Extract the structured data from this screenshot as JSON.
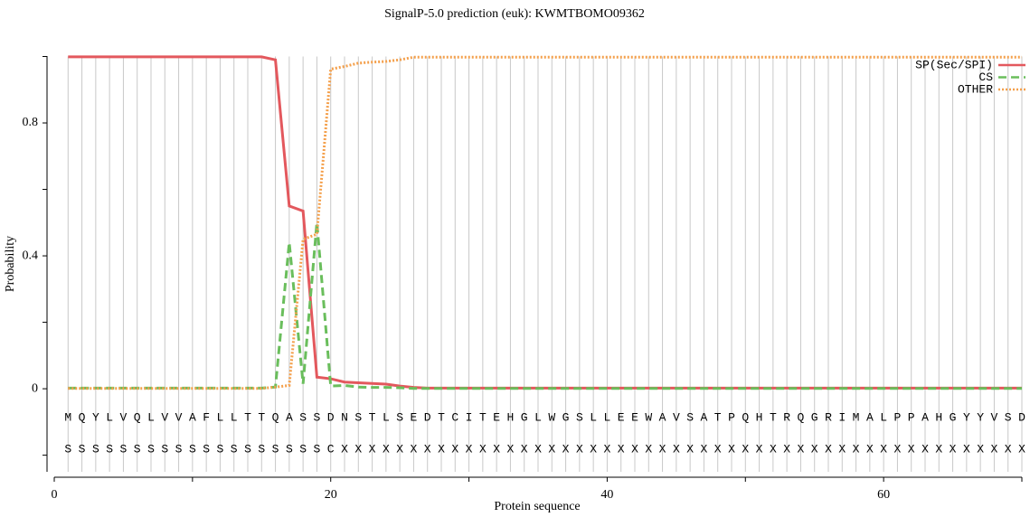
{
  "chart_data": {
    "type": "line",
    "title": "SignalP-5.0 prediction (euk):  KWMTBOMO09362",
    "x_label": "Protein sequence",
    "y_label": "Probability",
    "x": [
      1,
      2,
      3,
      4,
      5,
      6,
      7,
      8,
      9,
      10,
      11,
      12,
      13,
      14,
      15,
      16,
      17,
      18,
      19,
      20,
      21,
      22,
      23,
      24,
      25,
      26,
      27,
      28,
      29,
      30,
      31,
      32,
      33,
      34,
      35,
      36,
      37,
      38,
      39,
      40,
      41,
      42,
      43,
      44,
      45,
      46,
      47,
      48,
      49,
      50,
      51,
      52,
      53,
      54,
      55,
      56,
      57,
      58,
      59,
      60,
      61,
      62,
      63,
      64,
      65,
      66,
      67,
      68,
      69,
      70
    ],
    "sequence": [
      "M",
      "Q",
      "Y",
      "L",
      "V",
      "Q",
      "L",
      "V",
      "V",
      "A",
      "F",
      "L",
      "L",
      "T",
      "T",
      "Q",
      "A",
      "S",
      "S",
      "D",
      "N",
      "S",
      "T",
      "L",
      "S",
      "E",
      "D",
      "T",
      "C",
      "I",
      "T",
      "E",
      "H",
      "G",
      "L",
      "W",
      "G",
      "S",
      "L",
      "L",
      "E",
      "E",
      "W",
      "A",
      "V",
      "S",
      "A",
      "T",
      "P",
      "Q",
      "H",
      "T",
      "R",
      "Q",
      "G",
      "R",
      "I",
      "M",
      "A",
      "L",
      "P",
      "P",
      "A",
      "H",
      "G",
      "Y",
      "Y",
      "V",
      "S",
      "D"
    ],
    "labels": [
      "S",
      "S",
      "S",
      "S",
      "S",
      "S",
      "S",
      "S",
      "S",
      "S",
      "S",
      "S",
      "S",
      "S",
      "S",
      "S",
      "S",
      "S",
      "S",
      "C",
      "X",
      "X",
      "X",
      "X",
      "X",
      "X",
      "X",
      "X",
      "X",
      "X",
      "X",
      "X",
      "X",
      "X",
      "X",
      "X",
      "X",
      "X",
      "X",
      "X",
      "X",
      "X",
      "X",
      "X",
      "X",
      "X",
      "X",
      "X",
      "X",
      "X",
      "X",
      "X",
      "X",
      "X",
      "X",
      "X",
      "X",
      "X",
      "X",
      "X",
      "X",
      "X",
      "X",
      "X",
      "X",
      "X",
      "X",
      "X",
      "X",
      "X"
    ],
    "series": [
      {
        "name": "SP(Sec/SPI)",
        "color": "#e3585d",
        "style": "solid",
        "values": [
          0.999,
          0.999,
          0.999,
          0.999,
          0.999,
          0.999,
          0.999,
          0.999,
          0.999,
          0.999,
          0.999,
          0.999,
          0.999,
          0.999,
          0.999,
          0.99,
          0.55,
          0.535,
          0.035,
          0.03,
          0.02,
          0.018,
          0.016,
          0.014,
          0.008,
          0.004,
          0.002,
          0.002,
          0.002,
          0.002,
          0.002,
          0.002,
          0.002,
          0.002,
          0.002,
          0.002,
          0.002,
          0.002,
          0.002,
          0.002,
          0.002,
          0.002,
          0.002,
          0.002,
          0.002,
          0.002,
          0.002,
          0.002,
          0.002,
          0.002,
          0.002,
          0.002,
          0.002,
          0.002,
          0.002,
          0.002,
          0.002,
          0.002,
          0.002,
          0.002,
          0.002,
          0.002,
          0.002,
          0.002,
          0.002,
          0.002,
          0.002,
          0.002,
          0.002,
          0.002
        ]
      },
      {
        "name": "CS",
        "color": "#6abe5c",
        "style": "dashed",
        "values": [
          0.002,
          0.002,
          0.002,
          0.002,
          0.002,
          0.002,
          0.002,
          0.002,
          0.002,
          0.002,
          0.002,
          0.002,
          0.002,
          0.002,
          0.002,
          0.005,
          0.44,
          0.015,
          0.5,
          0.008,
          0.01,
          0.005,
          0.004,
          0.004,
          0.003,
          0.001,
          0.001,
          0.001,
          0.001,
          0.001,
          0.001,
          0.001,
          0.001,
          0.001,
          0.001,
          0.001,
          0.001,
          0.001,
          0.001,
          0.001,
          0.001,
          0.001,
          0.001,
          0.001,
          0.001,
          0.001,
          0.001,
          0.001,
          0.001,
          0.001,
          0.001,
          0.001,
          0.001,
          0.001,
          0.001,
          0.001,
          0.001,
          0.001,
          0.001,
          0.001,
          0.001,
          0.001,
          0.001,
          0.001,
          0.001,
          0.001,
          0.001,
          0.001,
          0.001,
          0.001
        ]
      },
      {
        "name": "OTHER",
        "color": "#f4a04c",
        "style": "dotted",
        "values": [
          0.001,
          0.001,
          0.001,
          0.001,
          0.001,
          0.001,
          0.001,
          0.001,
          0.001,
          0.001,
          0.001,
          0.001,
          0.001,
          0.001,
          0.001,
          0.005,
          0.01,
          0.45,
          0.465,
          0.962,
          0.97,
          0.98,
          0.983,
          0.985,
          0.99,
          0.998,
          0.998,
          0.998,
          0.998,
          0.998,
          0.998,
          0.998,
          0.998,
          0.998,
          0.998,
          0.998,
          0.998,
          0.998,
          0.998,
          0.998,
          0.998,
          0.998,
          0.998,
          0.998,
          0.998,
          0.998,
          0.998,
          0.998,
          0.998,
          0.998,
          0.998,
          0.998,
          0.998,
          0.998,
          0.998,
          0.998,
          0.998,
          0.998,
          0.998,
          0.998,
          0.998,
          0.998,
          0.998,
          0.998,
          0.998,
          0.998,
          0.998,
          0.998,
          0.998,
          0.998
        ]
      }
    ],
    "xlim": [
      0,
      70
    ],
    "xticks": [
      0,
      20,
      40,
      60
    ],
    "xticks_minor": [
      10,
      30,
      50,
      70
    ],
    "ylim": [
      -0.25,
      1.0
    ],
    "yticks": [
      0,
      0.4,
      0.8
    ],
    "yticks_minor": [
      -0.2,
      0.2,
      0.6,
      1.0
    ],
    "legend": "top-right"
  }
}
